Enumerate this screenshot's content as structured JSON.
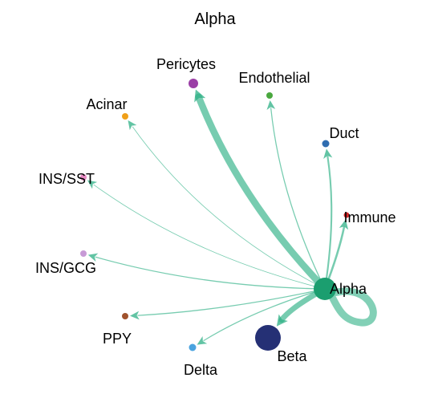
{
  "title": "Alpha",
  "edge_color": "#2eb085",
  "source": {
    "name": "Alpha",
    "color": "#1b9e6f"
  },
  "nodes": [
    {
      "name": "Pericytes",
      "color": "#9b3fa6",
      "weight": 10
    },
    {
      "name": "Endothelial",
      "color": "#4aa83f",
      "weight": 1.5
    },
    {
      "name": "Acinar",
      "color": "#f0a019",
      "weight": 1
    },
    {
      "name": "Duct",
      "color": "#2f6db0",
      "weight": 2.5
    },
    {
      "name": "INS/SST",
      "color": "#e78ac3",
      "weight": 1
    },
    {
      "name": "Immune",
      "color": "#d62728",
      "weight": 3
    },
    {
      "name": "INS/GCG",
      "color": "#c79ad6",
      "weight": 1.5
    },
    {
      "name": "PPY",
      "color": "#a0522d",
      "weight": 1.5
    },
    {
      "name": "Beta",
      "color": "#253075",
      "weight": 8
    },
    {
      "name": "Delta",
      "color": "#4aa3df",
      "weight": 1.5
    }
  ],
  "self_loop_weight": 9
}
